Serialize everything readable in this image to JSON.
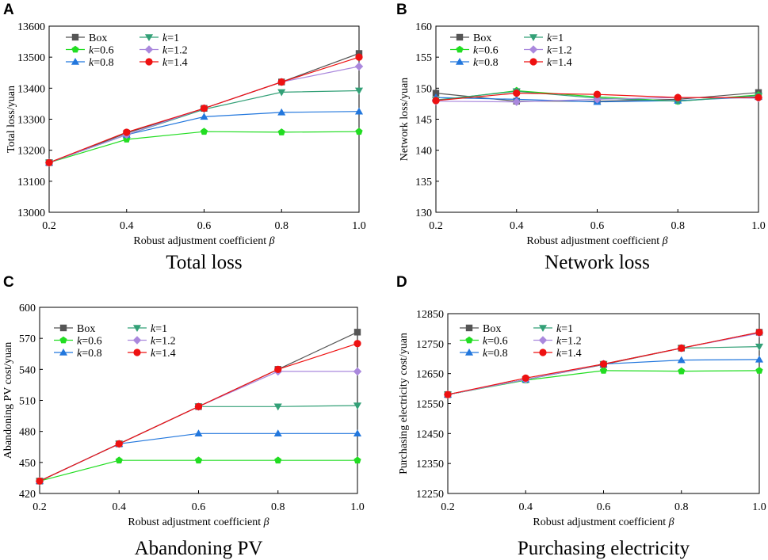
{
  "colors": {
    "Box": "#555555",
    "k=0.6": "#22dd22",
    "k=0.8": "#2277dd",
    "k=1": "#33a077",
    "k=1.2": "#aa88dd",
    "k=1.4": "#ee1111",
    "axis": "#000000"
  },
  "series_names": [
    "Box",
    "k=0.6",
    "k=0.8",
    "k=1",
    "k=1.2",
    "k=1.4"
  ],
  "legend": {
    "Box": {
      "prefix": "Box",
      "k": "",
      "suffix": ""
    },
    "k=0.6": {
      "prefix": "",
      "k": "k",
      "suffix": "=0.6"
    },
    "k=0.8": {
      "prefix": "",
      "k": "k",
      "suffix": "=0.8"
    },
    "k=1": {
      "prefix": "",
      "k": "k",
      "suffix": "=1"
    },
    "k=1.2": {
      "prefix": "",
      "k": "k",
      "suffix": "=1.2"
    },
    "k=1.4": {
      "prefix": "",
      "k": "k",
      "suffix": "=1.4"
    }
  },
  "xlabel_text": "Robust adjustment coefficient ",
  "xlabel_symbol": "β",
  "chart_data": [
    {
      "letter": "A",
      "type": "line",
      "title": "Total loss",
      "xlabel": "Robust adjustment coefficient β",
      "ylabel": "Total loss/yuan",
      "x": [
        0.2,
        0.4,
        0.6,
        0.8,
        1.0
      ],
      "xticks": [
        "0.2",
        "0.4",
        "0.6",
        "0.8",
        "1.0"
      ],
      "ylim": [
        13000,
        13600
      ],
      "yticks": [
        13000,
        13100,
        13200,
        13300,
        13400,
        13500,
        13600
      ],
      "series": [
        {
          "name": "Box",
          "values": [
            13160,
            13255,
            13335,
            13420,
            13512
          ]
        },
        {
          "name": "k=0.6",
          "values": [
            13160,
            13235,
            13260,
            13258,
            13260
          ]
        },
        {
          "name": "k=0.8",
          "values": [
            13160,
            13250,
            13308,
            13322,
            13325
          ]
        },
        {
          "name": "k=1",
          "values": [
            13160,
            13250,
            13332,
            13387,
            13392
          ]
        },
        {
          "name": "k=1.2",
          "values": [
            13160,
            13250,
            13335,
            13420,
            13470
          ]
        },
        {
          "name": "k=1.4",
          "values": [
            13160,
            13258,
            13335,
            13420,
            13500
          ]
        }
      ]
    },
    {
      "letter": "B",
      "type": "line",
      "title": "Network loss",
      "xlabel": "Robust adjustment coefficient β",
      "ylabel": "Network loss/yuan",
      "x": [
        0.2,
        0.4,
        0.6,
        0.8,
        1.0
      ],
      "xticks": [
        "0.2",
        "0.4",
        "0.6",
        "0.8",
        "1.0"
      ],
      "ylim": [
        130,
        160
      ],
      "yticks": [
        130,
        135,
        140,
        145,
        150,
        155,
        160
      ],
      "series": [
        {
          "name": "Box",
          "values": [
            149.2,
            147.9,
            147.9,
            148.2,
            149.3
          ]
        },
        {
          "name": "k=0.6",
          "values": [
            148.0,
            149.6,
            148.6,
            147.9,
            148.9
          ]
        },
        {
          "name": "k=0.8",
          "values": [
            148.5,
            148.2,
            147.8,
            148.0,
            148.6
          ]
        },
        {
          "name": "k=1",
          "values": [
            148.1,
            149.5,
            148.4,
            147.9,
            148.8
          ]
        },
        {
          "name": "k=1.2",
          "values": [
            147.9,
            147.8,
            148.2,
            148.5,
            148.4
          ]
        },
        {
          "name": "k=1.4",
          "values": [
            148.0,
            149.2,
            149.0,
            148.5,
            148.5
          ]
        }
      ]
    },
    {
      "letter": "C",
      "type": "line",
      "title": "Abandoning PV",
      "xlabel": "Robust adjustment coefficient β",
      "ylabel": "Abandoning PV cost/yuan",
      "x": [
        0.2,
        0.4,
        0.6,
        0.8,
        1.0
      ],
      "xticks": [
        "0.2",
        "0.4",
        "0.6",
        "0.8",
        "1.0"
      ],
      "ylim": [
        420,
        600
      ],
      "yticks": [
        420,
        450,
        480,
        510,
        540,
        570,
        600
      ],
      "series": [
        {
          "name": "Box",
          "values": [
            432,
            468,
            504,
            540,
            576
          ]
        },
        {
          "name": "k=0.6",
          "values": [
            432,
            452,
            452,
            452,
            452
          ]
        },
        {
          "name": "k=0.8",
          "values": [
            432,
            468,
            478,
            478,
            478
          ]
        },
        {
          "name": "k=1",
          "values": [
            432,
            468,
            504,
            504,
            505
          ]
        },
        {
          "name": "k=1.2",
          "values": [
            432,
            468,
            504,
            538,
            538
          ]
        },
        {
          "name": "k=1.4",
          "values": [
            432,
            468,
            504,
            540,
            565
          ]
        }
      ]
    },
    {
      "letter": "D",
      "type": "line",
      "title": "Purchasing electricity",
      "xlabel": "Robust adjustment coefficient β",
      "ylabel": "Purchasing electricity cost/yuan",
      "x": [
        0.2,
        0.4,
        0.6,
        0.8,
        1.0
      ],
      "xticks": [
        "0.2",
        "0.4",
        "0.6",
        "0.8",
        "1.0"
      ],
      "ylim": [
        12250,
        12850
      ],
      "yticks": [
        12250,
        12350,
        12450,
        12550,
        12650,
        12750,
        12850
      ],
      "series": [
        {
          "name": "Box",
          "values": [
            12580,
            12630,
            12680,
            12735,
            12788
          ]
        },
        {
          "name": "k=0.6",
          "values": [
            12580,
            12628,
            12660,
            12658,
            12660
          ]
        },
        {
          "name": "k=0.8",
          "values": [
            12580,
            12630,
            12682,
            12695,
            12697
          ]
        },
        {
          "name": "k=1",
          "values": [
            12580,
            12630,
            12682,
            12735,
            12740
          ]
        },
        {
          "name": "k=1.2",
          "values": [
            12580,
            12630,
            12682,
            12735,
            12785
          ]
        },
        {
          "name": "k=1.4",
          "values": [
            12580,
            12635,
            12682,
            12735,
            12788
          ]
        }
      ]
    }
  ]
}
